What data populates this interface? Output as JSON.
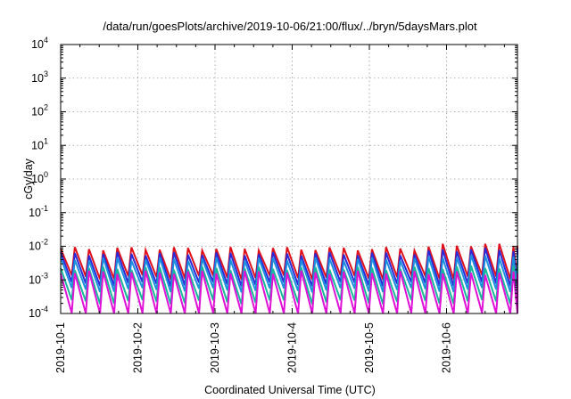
{
  "chart_data": {
    "type": "line",
    "title": "/data/run/goesPlots/archive/2019-10-06/21:00/flux/../bryn/5daysMars.plot",
    "xlabel": "Coordinated Universal Time (UTC)",
    "ylabel": "cGy/day",
    "y_scale": "log",
    "ylim": [
      0.0001,
      10000
    ],
    "xlim": [
      "2019-10-01",
      "2019-10-06 21:00"
    ],
    "x_tick_labels": [
      "2019-10-1",
      "2019-10-2",
      "2019-10-3",
      "2019-10-4",
      "2019-10-5",
      "2019-10-6"
    ],
    "y_ticks": [
      {
        "base": "10",
        "exp": "-4"
      },
      {
        "base": "10",
        "exp": "-3"
      },
      {
        "base": "10",
        "exp": "-2"
      },
      {
        "base": "10",
        "exp": "-1"
      },
      {
        "base": "10",
        "exp": "0"
      },
      {
        "base": "10",
        "exp": "1"
      },
      {
        "base": "10",
        "exp": "2"
      },
      {
        "base": "10",
        "exp": "3"
      },
      {
        "base": "10",
        "exp": "4"
      }
    ],
    "grid": true,
    "cycle_hours": 4.4,
    "series": [
      {
        "color": "#e0101a",
        "peak": 0.0085,
        "trough": 0.0012,
        "late_peak": 0.011
      },
      {
        "color": "#2a2ad8",
        "peak": 0.006,
        "trough": 0.00075,
        "late_peak": 0.008
      },
      {
        "color": "#1a8fe0",
        "peak": 0.0042,
        "trough": 0.0005,
        "late_peak": 0.005
      },
      {
        "color": "#18b89a",
        "peak": 0.0022,
        "trough": 0.00022,
        "late_peak": 0.0024
      },
      {
        "color": "#e010d8",
        "peak": 0.0017,
        "trough": 9e-05,
        "late_peak": 0.0016
      }
    ]
  }
}
